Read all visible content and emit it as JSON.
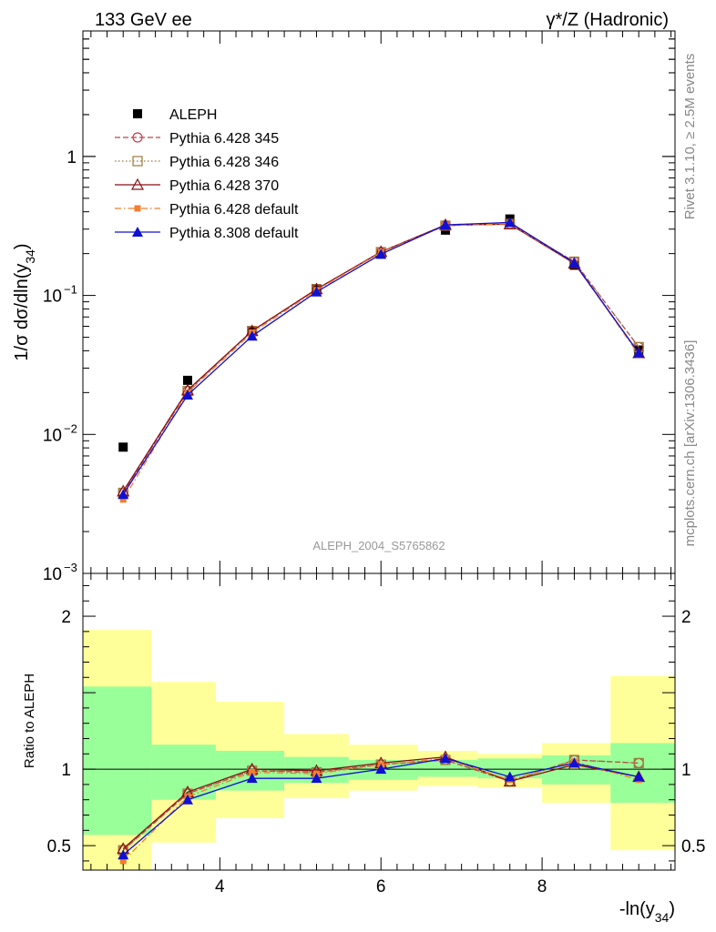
{
  "header": {
    "left": "133 GeV ee",
    "right": "γ*/Z (Hadronic)"
  },
  "side_labels": {
    "rivet": "Rivet 3.1.10, ≥ 2.5M events",
    "mcplots": "mcplots.cern.ch [arXiv:1306.3436]"
  },
  "watermark": "ALEPH_2004_S5765862",
  "chart_data": [
    {
      "type": "scatter",
      "panel": "main",
      "ylabel": "1/σ  dσ/dln(y34)",
      "yscale": "log",
      "ylim": [
        0.001,
        8
      ],
      "xlim": [
        2.3,
        9.65
      ],
      "ytick_labels": [
        {
          "value": 0.001,
          "label": "10",
          "exp": "−3"
        },
        {
          "value": 0.01,
          "label": "10",
          "exp": "−2"
        },
        {
          "value": 0.1,
          "label": "10",
          "exp": "−1"
        },
        {
          "value": 1,
          "label": "1",
          "exp": ""
        }
      ],
      "legend_position": "top-left",
      "series": [
        {
          "name": "ALEPH",
          "color": "#000000",
          "marker": "square",
          "line": "none",
          "x": [
            2.8,
            3.6,
            4.4,
            5.2,
            6.0,
            6.8,
            7.6,
            8.4,
            9.2
          ],
          "y": [
            0.0081,
            0.0245,
            0.055,
            0.112,
            0.198,
            0.295,
            0.355,
            0.165,
            0.0405
          ]
        },
        {
          "name": "Pythia 6.428 345",
          "color": "#c0404a",
          "marker": "circle-open",
          "line": "dashed",
          "x": [
            2.8,
            3.6,
            4.4,
            5.2,
            6.0,
            6.8,
            7.6,
            8.4,
            9.2
          ],
          "y": [
            0.0038,
            0.0205,
            0.0555,
            0.111,
            0.205,
            0.318,
            0.327,
            0.175,
            0.0425
          ]
        },
        {
          "name": "Pythia 6.428 346",
          "color": "#9c7a3c",
          "marker": "square-open",
          "line": "dotted",
          "x": [
            2.8,
            3.6,
            4.4,
            5.2,
            6.0,
            6.8,
            7.6,
            8.4,
            9.2
          ],
          "y": [
            0.0038,
            0.0205,
            0.0555,
            0.111,
            0.205,
            0.318,
            0.327,
            0.175,
            0.0425
          ]
        },
        {
          "name": "Pythia 6.428 370",
          "color": "#8b0e14",
          "marker": "triangle-open",
          "line": "solid",
          "x": [
            2.8,
            3.6,
            4.4,
            5.2,
            6.0,
            6.8,
            7.6,
            8.4,
            9.2
          ],
          "y": [
            0.0039,
            0.0208,
            0.0555,
            0.111,
            0.206,
            0.322,
            0.325,
            0.17,
            0.0385
          ]
        },
        {
          "name": "Pythia 6.428 default",
          "color": "#f07f30",
          "marker": "square-small",
          "line": "dashdot",
          "x": [
            2.8,
            3.6,
            4.4,
            5.2,
            6.0,
            6.8,
            7.6,
            8.4,
            9.2
          ],
          "y": [
            0.0034,
            0.02,
            0.054,
            0.109,
            0.204,
            0.318,
            0.328,
            0.172,
            0.0375
          ]
        },
        {
          "name": "Pythia 8.308 default",
          "color": "#1010d0",
          "marker": "triangle",
          "line": "solid",
          "x": [
            2.8,
            3.6,
            4.4,
            5.2,
            6.0,
            6.8,
            7.6,
            8.4,
            9.2
          ],
          "y": [
            0.0037,
            0.0192,
            0.051,
            0.106,
            0.198,
            0.322,
            0.335,
            0.172,
            0.0385
          ]
        }
      ]
    },
    {
      "type": "scatter",
      "panel": "ratio",
      "ylabel": "Ratio to ALEPH",
      "xlabel": "-ln(y34)",
      "yscale": "linear",
      "ylim": [
        0.34,
        2.28
      ],
      "xlim": [
        2.3,
        9.65
      ],
      "xticks": [
        4,
        6,
        8
      ],
      "yticks": [
        0.5,
        1,
        2
      ],
      "bands": [
        {
          "xlo": 2.3,
          "xhi": 3.15,
          "stat": [
            0.57,
            1.54
          ],
          "total": [
            0.34,
            1.91
          ]
        },
        {
          "xlo": 3.15,
          "xhi": 3.95,
          "stat": [
            0.8,
            1.16
          ],
          "total": [
            0.52,
            1.57
          ]
        },
        {
          "xlo": 3.95,
          "xhi": 4.8,
          "stat": [
            0.86,
            1.12
          ],
          "total": [
            0.68,
            1.44
          ]
        },
        {
          "xlo": 4.8,
          "xhi": 5.6,
          "stat": [
            0.91,
            1.08
          ],
          "total": [
            0.81,
            1.23
          ]
        },
        {
          "xlo": 5.6,
          "xhi": 6.45,
          "stat": [
            0.93,
            1.06
          ],
          "total": [
            0.86,
            1.16
          ]
        },
        {
          "xlo": 6.45,
          "xhi": 7.2,
          "stat": [
            0.95,
            1.06
          ],
          "total": [
            0.89,
            1.12
          ]
        },
        {
          "xlo": 7.2,
          "xhi": 8.0,
          "stat": [
            0.94,
            1.07
          ],
          "total": [
            0.88,
            1.1
          ]
        },
        {
          "xlo": 8.0,
          "xhi": 8.85,
          "stat": [
            0.9,
            1.09
          ],
          "total": [
            0.78,
            1.17
          ]
        },
        {
          "xlo": 8.85,
          "xhi": 9.65,
          "stat": [
            0.78,
            1.17
          ],
          "total": [
            0.47,
            1.61
          ]
        }
      ],
      "series": [
        {
          "name": "Pythia 6.428 345",
          "color": "#c0404a",
          "marker": "circle-open",
          "line": "dashed",
          "x": [
            2.8,
            3.6,
            4.4,
            5.2,
            6.0,
            6.8,
            7.6,
            8.4,
            9.2
          ],
          "y": [
            0.47,
            0.84,
            0.99,
            0.98,
            1.03,
            1.06,
            0.92,
            1.06,
            1.04
          ]
        },
        {
          "name": "Pythia 6.428 346",
          "color": "#9c7a3c",
          "marker": "square-open",
          "line": "dotted",
          "x": [
            2.8,
            3.6,
            4.4,
            5.2,
            6.0,
            6.8,
            7.6,
            8.4,
            9.2
          ],
          "y": [
            0.47,
            0.84,
            0.99,
            0.98,
            1.03,
            1.06,
            0.92,
            1.06,
            1.04
          ]
        },
        {
          "name": "Pythia 6.428 370",
          "color": "#8b0e14",
          "marker": "triangle-open",
          "line": "solid",
          "x": [
            2.8,
            3.6,
            4.4,
            5.2,
            6.0,
            6.8,
            7.6,
            8.4,
            9.2
          ],
          "y": [
            0.48,
            0.85,
            1.0,
            0.99,
            1.04,
            1.08,
            0.92,
            1.03,
            0.95
          ]
        },
        {
          "name": "Pythia 6.428 default",
          "color": "#f07f30",
          "marker": "square-small",
          "line": "dashdot",
          "x": [
            2.8,
            3.6,
            4.4,
            5.2,
            6.0,
            6.8,
            7.6,
            8.4,
            9.2
          ],
          "y": [
            0.4,
            0.82,
            0.98,
            0.97,
            1.03,
            1.07,
            0.93,
            1.05,
            0.93
          ]
        },
        {
          "name": "Pythia 8.308 default",
          "color": "#1010d0",
          "marker": "triangle",
          "line": "solid",
          "x": [
            2.8,
            3.6,
            4.4,
            5.2,
            6.0,
            6.8,
            7.6,
            8.4,
            9.2
          ],
          "y": [
            0.44,
            0.8,
            0.94,
            0.94,
            1.0,
            1.07,
            0.95,
            1.04,
            0.95
          ]
        }
      ]
    }
  ]
}
